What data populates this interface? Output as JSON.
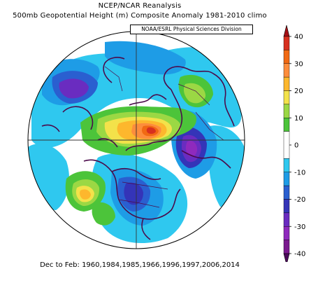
{
  "title": "NCEP/NCAR Reanalysis",
  "subtitle": "500mb Geopotential Height (m) Composite Anomaly 1981-2010 climo",
  "source": "NOAA/ESRL Physical Sciences Division",
  "footer": "Dec to Feb: 1960,1984,1985,1966,1996,1997,2006,2014",
  "colorbar": {
    "ticks": [
      "40",
      "30",
      "20",
      "10",
      "0",
      "-10",
      "-20",
      "-30",
      "-40"
    ],
    "bins": [
      {
        "from": 35,
        "to": 40,
        "color": "#d7301f"
      },
      {
        "from": 30,
        "to": 35,
        "color": "#f16913"
      },
      {
        "from": 25,
        "to": 30,
        "color": "#fd8d3c"
      },
      {
        "from": 20,
        "to": 25,
        "color": "#fdb72d"
      },
      {
        "from": 15,
        "to": 20,
        "color": "#f3e24a"
      },
      {
        "from": 10,
        "to": 15,
        "color": "#9bd844"
      },
      {
        "from": 5,
        "to": 10,
        "color": "#4cc43a"
      },
      {
        "from": -5,
        "to": 5,
        "color": "#ffffff"
      },
      {
        "from": -10,
        "to": -5,
        "color": "#2fc8ef"
      },
      {
        "from": -15,
        "to": -10,
        "color": "#1e9ce6"
      },
      {
        "from": -20,
        "to": -15,
        "color": "#2a5fd0"
      },
      {
        "from": -25,
        "to": -20,
        "color": "#3434b8"
      },
      {
        "from": -30,
        "to": -25,
        "color": "#6a2cc0"
      },
      {
        "from": -35,
        "to": -30,
        "color": "#8f2abd"
      },
      {
        "from": -40,
        "to": -35,
        "color": "#7b1a8f"
      }
    ],
    "arrow_top_color": "#a50f15",
    "arrow_bottom_color": "#4a0a5a"
  },
  "map": {
    "projection": "north-polar-stereographic",
    "ocean_color": "#ffffff",
    "coast_color": "#4b0a4b"
  }
}
